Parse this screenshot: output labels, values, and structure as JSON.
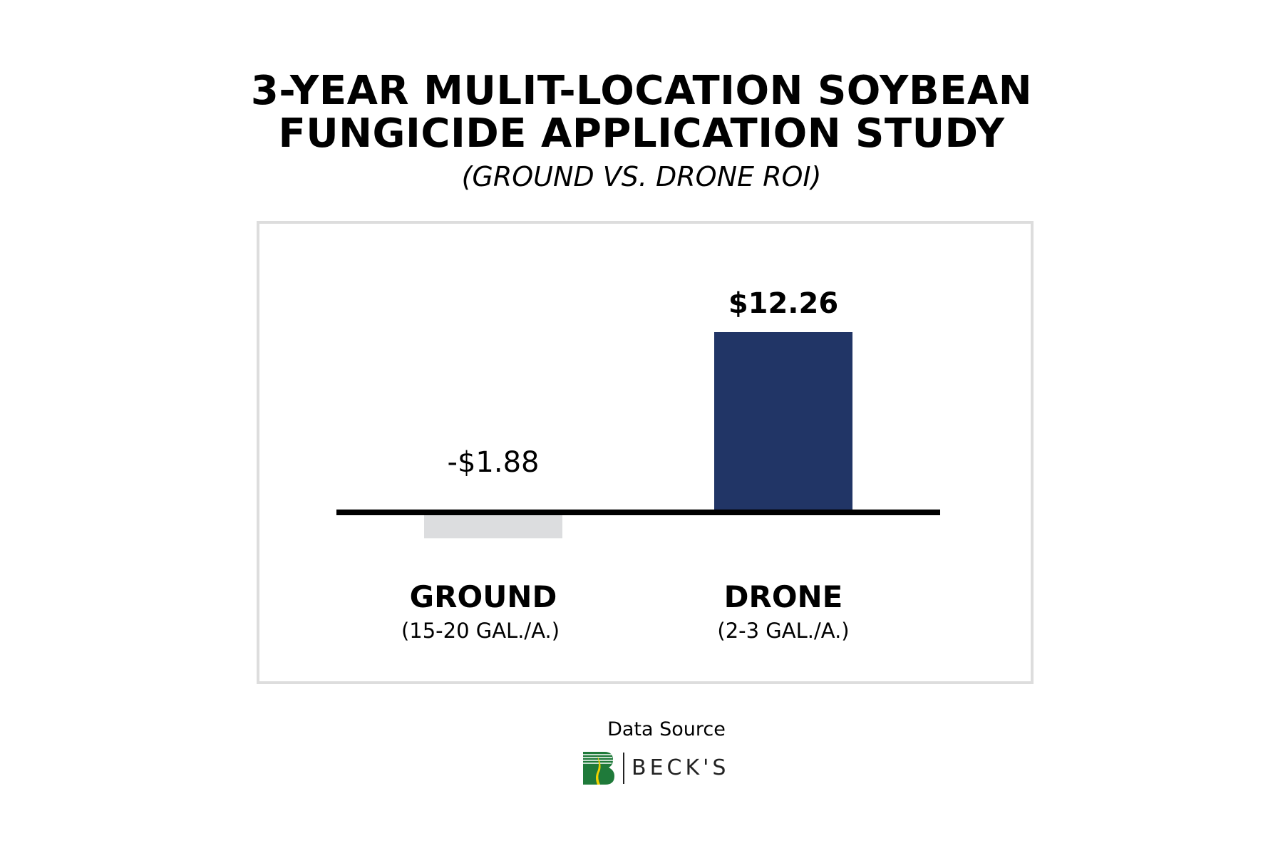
{
  "chart_data": {
    "type": "bar",
    "title": "3-YEAR MULIT-LOCATION SOYBEAN FUNGICIDE APPLICATION STUDY",
    "title_lines": [
      "3-YEAR MULIT-LOCATION SOYBEAN",
      "FUNGICIDE APPLICATION STUDY"
    ],
    "subtitle": "(GROUND VS. DRONE ROI)",
    "categories": [
      "GROUND",
      "DRONE"
    ],
    "category_sublabels": [
      "(15-20 GAL./A.)",
      "(2-3 GAL./A.)"
    ],
    "values": [
      -1.88,
      12.26
    ],
    "data_labels": [
      "-$1.88",
      "$12.26"
    ],
    "colors": [
      "#dcdddf",
      "#213566"
    ],
    "ylim": [
      -1.88,
      12.26
    ],
    "grid": false,
    "xlabel": "",
    "ylabel": ""
  },
  "footer": {
    "source_label": "Data Source",
    "logo_text": "BECK'S"
  }
}
